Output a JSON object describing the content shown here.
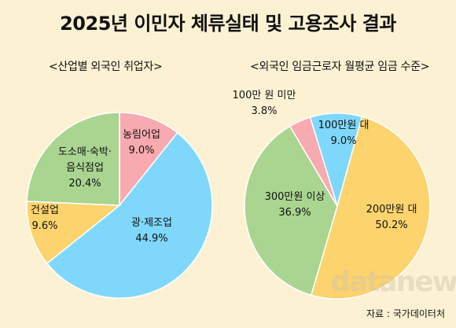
{
  "title": "2025년 이민자 체류실태 및 고용조사 결과",
  "source": "자료 : 국가데이터처",
  "watermark": "datanews",
  "chart_data": [
    {
      "type": "pie",
      "title": "<산업별 외국인 취업자>",
      "slices": [
        {
          "label": "농림어업",
          "value": 9.0,
          "value_label": "9.0%",
          "color": "#f7aab0"
        },
        {
          "label": "광·제조업",
          "value": 44.9,
          "value_label": "44.9%",
          "color": "#7fd8fb"
        },
        {
          "label": "건설업",
          "value": 9.6,
          "value_label": "9.6%",
          "color": "#fcd36d"
        },
        {
          "label": "도소매·숙박·음식점업",
          "label_lines": [
            "도소매·숙박·",
            "음식점업"
          ],
          "value": 20.4,
          "value_label": "20.4%",
          "color": "#a9d590"
        }
      ]
    },
    {
      "type": "pie",
      "title": "<외국인 임금근로자 월평균 임금 수준>",
      "slices": [
        {
          "label": "100만원 대",
          "value": 9.0,
          "value_label": "9.0%",
          "color": "#7fd8fb"
        },
        {
          "label": "200만원 대",
          "value": 50.2,
          "value_label": "50.2%",
          "color": "#fcd36d"
        },
        {
          "label": "300만원 이상",
          "value": 36.9,
          "value_label": "36.9%",
          "color": "#a9d590"
        },
        {
          "label": "100만 원 미만",
          "value": 3.8,
          "value_label": "3.8%",
          "color": "#f7aab0"
        }
      ]
    }
  ]
}
